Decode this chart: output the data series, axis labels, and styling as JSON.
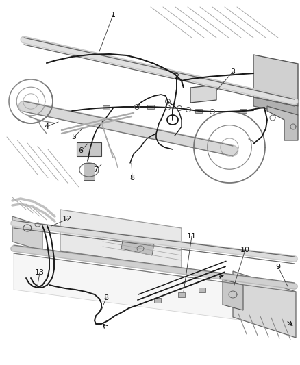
{
  "bg_color": "#ffffff",
  "line_color": "#1a1a1a",
  "gray_color": "#888888",
  "light_gray": "#cccccc",
  "fig_width": 4.38,
  "fig_height": 5.33,
  "dpi": 100,
  "top_labels": [
    [
      "1",
      165,
      22
    ],
    [
      "2",
      258,
      112
    ],
    [
      "3",
      340,
      105
    ],
    [
      "4",
      68,
      185
    ],
    [
      "5",
      108,
      200
    ],
    [
      "6",
      118,
      220
    ],
    [
      "7",
      140,
      248
    ],
    [
      "8",
      193,
      260
    ]
  ],
  "bot_labels": [
    [
      "8",
      155,
      435
    ],
    [
      "9",
      406,
      390
    ],
    [
      "10",
      358,
      365
    ],
    [
      "11",
      280,
      345
    ],
    [
      "12",
      98,
      320
    ],
    [
      "13",
      58,
      398
    ]
  ]
}
